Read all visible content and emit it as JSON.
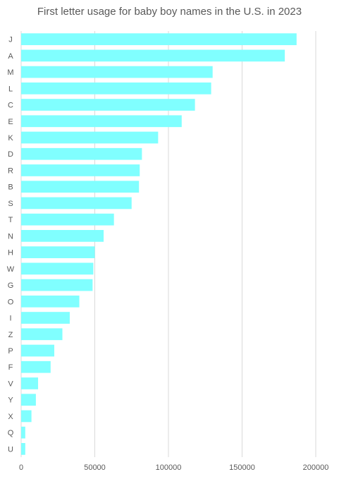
{
  "chart_data": {
    "type": "bar",
    "orientation": "horizontal",
    "title": "First letter usage for baby boy names in the U.S. in 2023",
    "xlabel": "",
    "ylabel": "",
    "xlim": [
      0,
      200000
    ],
    "x_ticks": [
      "0",
      "50000",
      "100000",
      "150000",
      "200000"
    ],
    "grid": true,
    "legend": "none",
    "bar_color": "#80FFFF",
    "categories": [
      "J",
      "A",
      "M",
      "L",
      "C",
      "E",
      "K",
      "D",
      "R",
      "B",
      "S",
      "T",
      "N",
      "H",
      "W",
      "G",
      "O",
      "I",
      "Z",
      "P",
      "F",
      "V",
      "Y",
      "X",
      "Q",
      "U"
    ],
    "values": [
      187000,
      179000,
      130000,
      129000,
      118000,
      109000,
      93000,
      82000,
      80500,
      80000,
      75000,
      63000,
      56000,
      50000,
      49000,
      48500,
      39500,
      33000,
      28000,
      22500,
      20000,
      11500,
      10000,
      7000,
      2800,
      2800
    ]
  }
}
